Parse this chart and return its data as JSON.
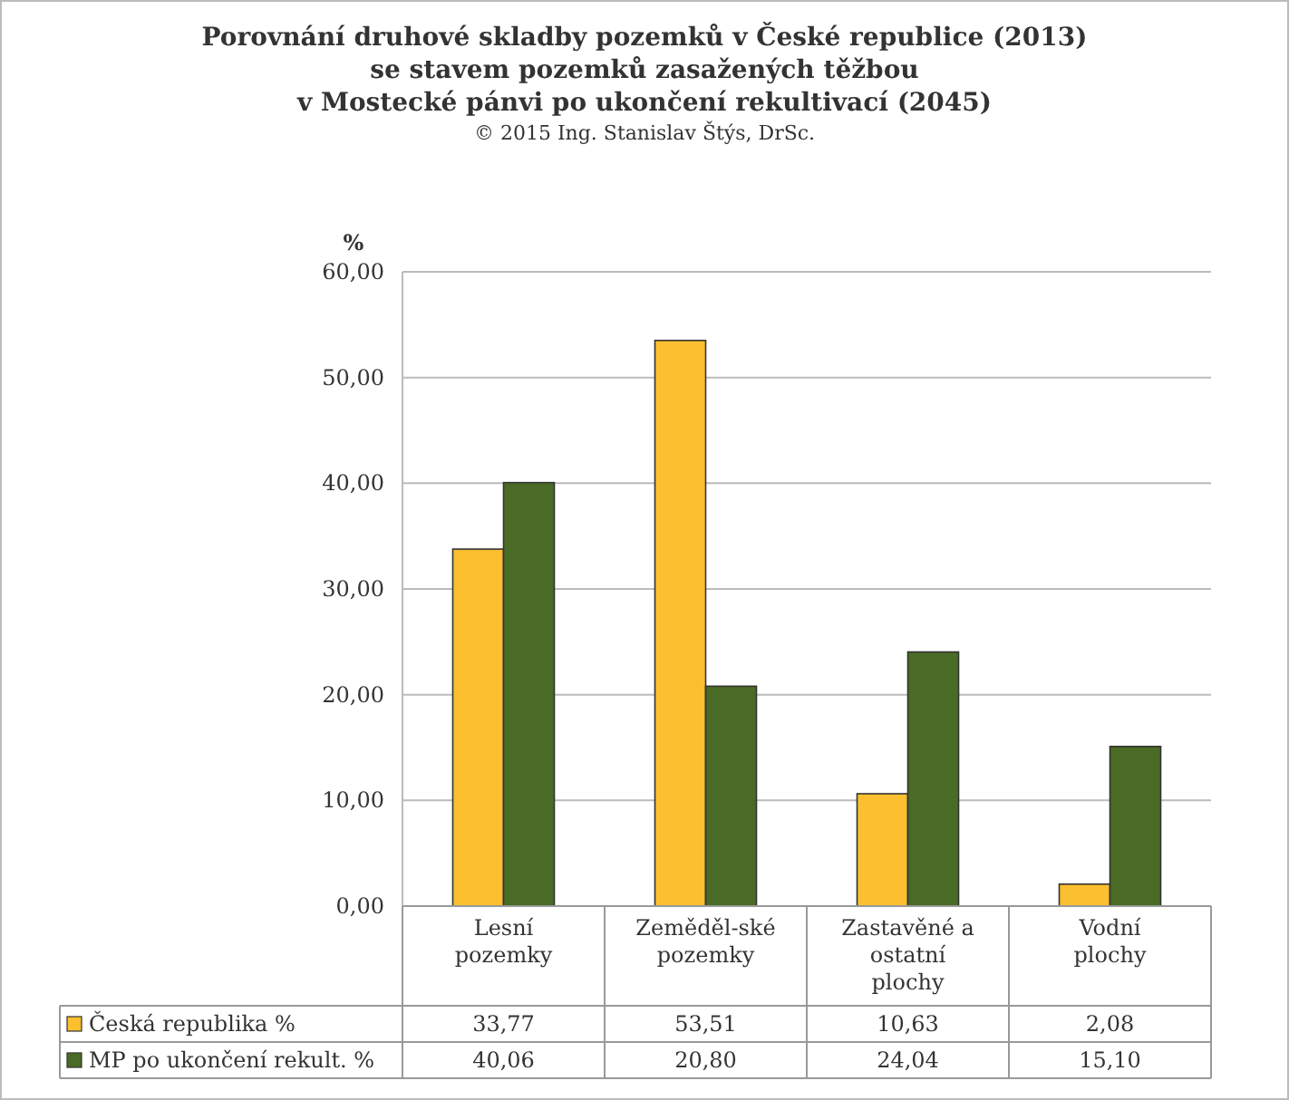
{
  "chart_data": {
    "type": "bar",
    "title": "Porovnání druhové skladby pozemků v České republice (2013)\nse stavem pozemků zasažených těžbou\nv Mostecké pánvi po ukončení rekultivací (2045)",
    "subtitle": "© 2015 Ing. Stanislav Štýs, DrSc.",
    "ylabel": "%",
    "categories": [
      "Lesní pozemky",
      "Zeměděl-ské pozemky",
      "Zastavěné a ostatní plochy",
      "Vodní plochy"
    ],
    "series": [
      {
        "name": "Česká republika %",
        "color": "#fbbf2f",
        "values": [
          33.77,
          53.51,
          10.63,
          2.08
        ],
        "value_labels": [
          "33,77",
          "53,51",
          "10,63",
          "2,08"
        ]
      },
      {
        "name": "MP po ukončení rekult. %",
        "color": "#4a6b25",
        "values": [
          40.06,
          20.8,
          24.04,
          15.1
        ],
        "value_labels": [
          "40,06",
          "20,80",
          "24,04",
          "15,10"
        ]
      }
    ],
    "ylim": [
      0,
      60
    ],
    "yticks": [
      {
        "value": 0,
        "label": "0,00"
      },
      {
        "value": 10,
        "label": "10,00"
      },
      {
        "value": 20,
        "label": "20,00"
      },
      {
        "value": 30,
        "label": "30,00"
      },
      {
        "value": 40,
        "label": "40,00"
      },
      {
        "value": 50,
        "label": "50,00"
      },
      {
        "value": 60,
        "label": "60,00"
      }
    ],
    "grid": "y",
    "legend": "bottom"
  }
}
